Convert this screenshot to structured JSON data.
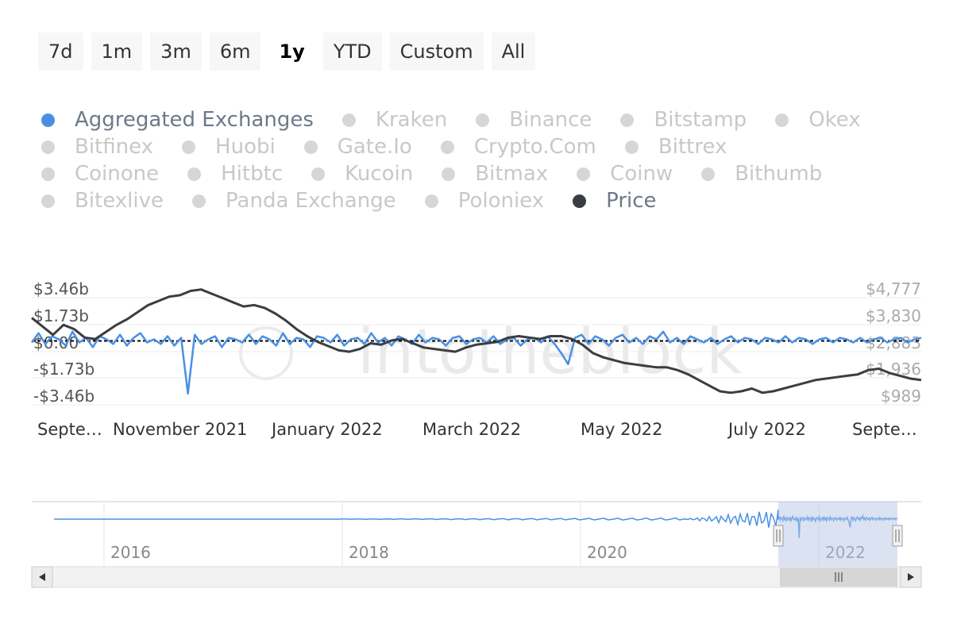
{
  "range_buttons": [
    "7d",
    "1m",
    "3m",
    "6m",
    "1y",
    "YTD",
    "Custom",
    "All"
  ],
  "active_range": "1y",
  "legend": {
    "rows": [
      [
        {
          "label": "Aggregated Exchanges",
          "color": "#4a90e2",
          "active": true
        },
        {
          "label": "Kraken",
          "color": "#cccccc",
          "active": false
        },
        {
          "label": "Binance",
          "color": "#cccccc",
          "active": false
        },
        {
          "label": "Bitstamp",
          "color": "#cccccc",
          "active": false
        },
        {
          "label": "Okex",
          "color": "#cccccc",
          "active": false
        }
      ],
      [
        {
          "label": "Bitfinex",
          "color": "#cccccc",
          "active": false
        },
        {
          "label": "Huobi",
          "color": "#cccccc",
          "active": false
        },
        {
          "label": "Gate.Io",
          "color": "#cccccc",
          "active": false
        },
        {
          "label": "Crypto.Com",
          "color": "#cccccc",
          "active": false
        },
        {
          "label": "Bittrex",
          "color": "#cccccc",
          "active": false
        }
      ],
      [
        {
          "label": "Coinone",
          "color": "#cccccc",
          "active": false
        },
        {
          "label": "Hitbtc",
          "color": "#cccccc",
          "active": false
        },
        {
          "label": "Kucoin",
          "color": "#cccccc",
          "active": false
        },
        {
          "label": "Bitmax",
          "color": "#cccccc",
          "active": false
        },
        {
          "label": "Coinw",
          "color": "#cccccc",
          "active": false
        },
        {
          "label": "Bithumb",
          "color": "#cccccc",
          "active": false
        }
      ],
      [
        {
          "label": "Bitexlive",
          "color": "#cccccc",
          "active": false
        },
        {
          "label": "Panda Exchange",
          "color": "#cccccc",
          "active": false
        },
        {
          "label": "Poloniex",
          "color": "#cccccc",
          "active": false
        },
        {
          "label": "Price",
          "color": "#3a3d42",
          "active": true
        }
      ]
    ]
  },
  "watermark": "intotheblock",
  "chart_data": {
    "type": "line",
    "left_axis": {
      "ticks": [
        "$3.46b",
        "$1.73b",
        "$0.00",
        "-$1.73b",
        "-$3.46b"
      ],
      "values": [
        3.46,
        1.73,
        0,
        -1.73,
        -3.46
      ],
      "range": [
        -3.46,
        3.46
      ]
    },
    "right_axis": {
      "ticks": [
        "$4,777",
        "$3,830",
        "$2,883",
        "$1,936",
        "$989"
      ],
      "values": [
        4777,
        3830,
        2883,
        1936,
        989
      ],
      "range": [
        989,
        4777
      ]
    },
    "x_tick_labels": [
      "Septe…",
      "November 2021",
      "January 2022",
      "March 2022",
      "May 2022",
      "July 2022",
      "Septe…"
    ],
    "series": [
      {
        "name": "Aggregated Exchanges",
        "color": "#4a90e2",
        "axis": "left",
        "values": [
          -0.1,
          0.5,
          -0.2,
          0.3,
          0.1,
          -0.3,
          0.6,
          -0.1,
          0.2,
          -0.4,
          0.3,
          0.1,
          -0.2,
          0.4,
          -0.3,
          0.2,
          0.5,
          -0.1,
          0.1,
          -0.2,
          0.3,
          -0.3,
          0.2,
          -3.4,
          0.4,
          -0.2,
          0.1,
          0.3,
          -0.4,
          0.2,
          0.1,
          -0.1,
          0.4,
          -0.2,
          0.3,
          0.1,
          -0.3,
          0.5,
          -0.2,
          0.2,
          0.1,
          -0.4,
          0.3,
          0.2,
          -0.1,
          0.4,
          -0.3,
          0.1,
          0.2,
          -0.2,
          0.5,
          -0.1,
          0.2,
          -0.3,
          0.3,
          0.1,
          -0.2,
          0.4,
          -0.1,
          0.2,
          0.1,
          -0.3,
          0.2,
          0.3,
          -0.2,
          0.1,
          0.2,
          -0.1,
          0.3,
          -0.2,
          0.1,
          0.2,
          -0.3,
          0.1,
          0.2,
          -0.1,
          0.3,
          -0.2,
          -0.8,
          -1.5,
          0.2,
          0.4,
          -0.2,
          0.3,
          0.1,
          -0.3,
          0.2,
          0.4,
          -0.1,
          0.2,
          -0.2,
          0.3,
          0.1,
          0.6,
          -0.1,
          0.2,
          -0.2,
          0.3,
          0.1,
          -0.1,
          0.2,
          -0.2,
          0.1,
          0.3,
          -0.1,
          0.2,
          0.1,
          -0.2,
          0.2,
          0.1,
          -0.1,
          0.3,
          -0.1,
          0.2,
          0.1,
          -0.2,
          0.1,
          0.2,
          -0.1,
          0.2,
          0.1,
          -0.1,
          0.2,
          -0.1,
          0.1,
          0.2,
          -0.1,
          0.1,
          0.2,
          -0.1,
          0.1,
          0.2
        ]
      },
      {
        "name": "Price",
        "color": "#3a3d42",
        "axis": "right",
        "values": [
          3700,
          3400,
          3100,
          3450,
          3300,
          3000,
          2950,
          3200,
          3450,
          3650,
          3900,
          4150,
          4300,
          4450,
          4500,
          4650,
          4700,
          4550,
          4400,
          4250,
          4100,
          4150,
          4050,
          3850,
          3600,
          3300,
          3050,
          2850,
          2700,
          2550,
          2500,
          2600,
          2800,
          2750,
          2900,
          2950,
          2800,
          2650,
          2600,
          2550,
          2500,
          2650,
          2750,
          2800,
          2850,
          3000,
          3050,
          3000,
          2950,
          3050,
          3050,
          2950,
          2750,
          2450,
          2300,
          2200,
          2100,
          2050,
          2000,
          1950,
          1950,
          1850,
          1700,
          1500,
          1300,
          1100,
          1050,
          1100,
          1200,
          1050,
          1100,
          1200,
          1300,
          1400,
          1500,
          1550,
          1600,
          1650,
          1700,
          1850,
          1900,
          1750,
          1650,
          1550,
          1500
        ],
        "x_fraction_of_series": 1.0
      }
    ],
    "navigator": {
      "x_tick_labels": [
        "2016",
        "2018",
        "2020",
        "2022"
      ],
      "selection": "last 1y"
    }
  }
}
